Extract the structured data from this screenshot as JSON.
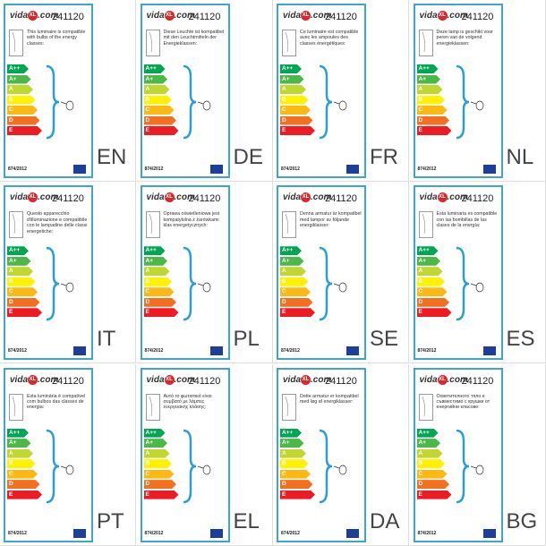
{
  "brand": "vida",
  "brand_badge": "XL",
  "brand_suffix": ".com",
  "product_code": "241120",
  "classes": [
    "A++",
    "A+",
    "A",
    "B",
    "C",
    "D",
    "E"
  ],
  "regulation": "874/2012",
  "labels": [
    {
      "language": "EN",
      "description": "This luminaire is compatible with bulbs of the energy classes:"
    },
    {
      "language": "DE",
      "description": "Diese Leuchte ist kompatibel mit den Leuchtmitteln der Energieklassen:"
    },
    {
      "language": "FR",
      "description": "Ce luminaire est compatible avec les ampoules des classes énergétiques:"
    },
    {
      "language": "NL",
      "description": "Deze lamp is geschikt voor peren van de volgend energieklassen:"
    },
    {
      "language": "IT",
      "description": "Questo apparecchio d'illuminazione e compatibile con le lampadine delle classi energetiche:"
    },
    {
      "language": "PL",
      "description": "Oprawa oświetleniowa jest kompatybilna z żarówkami klas energetycznych:"
    },
    {
      "language": "SE",
      "description": "Denna armatur är kompatibel med lampor av följande energiklasser:"
    },
    {
      "language": "ES",
      "description": "Esta luminaria es compatible con las bombillas de las clases de la energía:"
    },
    {
      "language": "PT",
      "description": "Esta luminária é compatível com bulbos das classes de energia:"
    },
    {
      "language": "EL",
      "description": "Αυτό το φωτιστικό είναι συμβατό με λάμπες ενεργειακής κλάσης:"
    },
    {
      "language": "DA",
      "description": "Dette armatur er kompatibel med løg af energiklasser:"
    },
    {
      "language": "BG",
      "description": "Осветителното тяло е съвместимо с крушки от енергийни класове:"
    }
  ]
}
